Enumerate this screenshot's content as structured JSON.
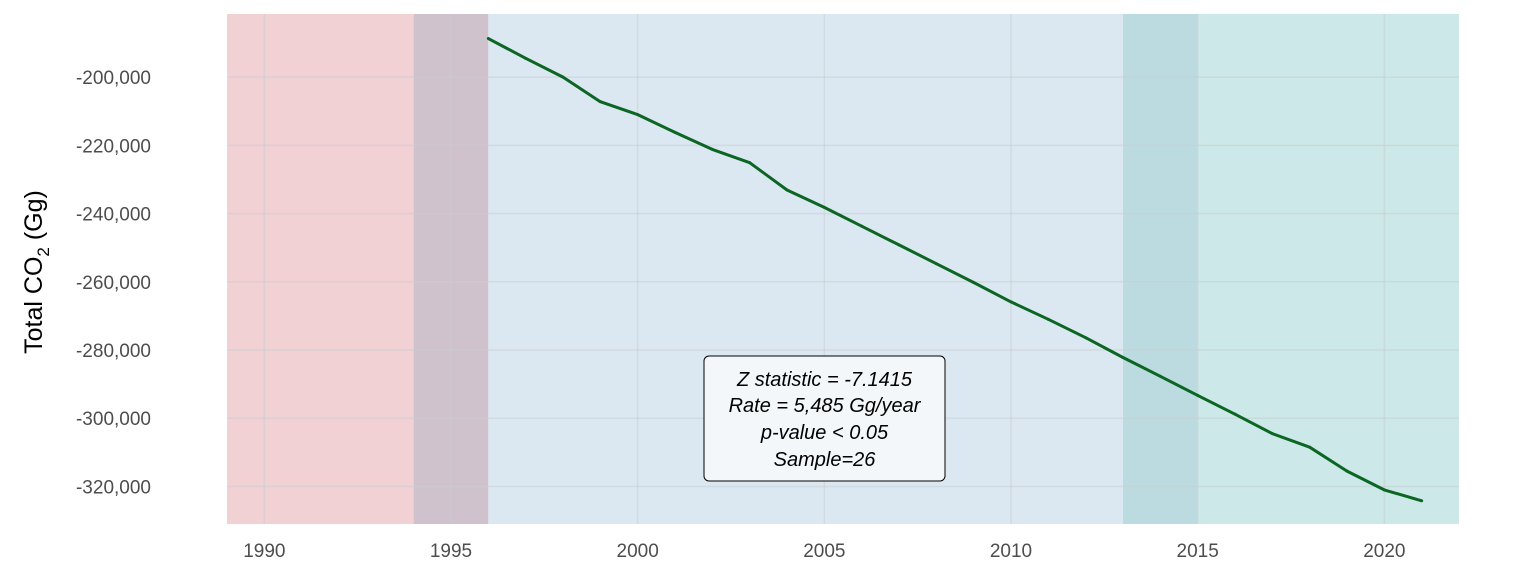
{
  "chart_data": {
    "type": "line",
    "title": "",
    "xlabel": "",
    "ylabel": {
      "main": "Total CO",
      "sub": "2",
      "unit": " (Gg)"
    },
    "xlim": [
      1989,
      2022
    ],
    "ylim": [
      -331000,
      -181500
    ],
    "x_ticks": [
      1990,
      1995,
      2000,
      2005,
      2010,
      2015,
      2020
    ],
    "y_ticks": [
      -200000,
      -220000,
      -240000,
      -260000,
      -280000,
      -300000,
      -320000
    ],
    "y_tick_labels": [
      "-200,000",
      "-220,000",
      "-240,000",
      "-260,000",
      "-280,000",
      "-300,000",
      "-320,000"
    ],
    "grid": true,
    "legend": "none",
    "line_color": "#0b6623",
    "bands": [
      {
        "from": 1989,
        "to": 1994,
        "color": "#e8b3b8"
      },
      {
        "from": 1994,
        "to": 1996,
        "color": "#b09aab"
      },
      {
        "from": 1996,
        "to": 2013,
        "color": "#c4d8e8"
      },
      {
        "from": 2013,
        "to": 2015,
        "color": "#8fc3cb"
      },
      {
        "from": 2015,
        "to": 2022,
        "color": "#acd9d9"
      }
    ],
    "series": [
      {
        "x": [
          1996,
          1997,
          1998,
          1999,
          2000,
          2001,
          2002,
          2003,
          2004,
          2005,
          2006,
          2007,
          2008,
          2009,
          2010,
          2011,
          2012,
          2013,
          2014,
          2015,
          2016,
          2017,
          2018,
          2019,
          2020,
          2021
        ],
        "values": [
          -188700,
          -194500,
          -200000,
          -207200,
          -211000,
          -216200,
          -221200,
          -225100,
          -233100,
          -238200,
          -243700,
          -249200,
          -254700,
          -260200,
          -265900,
          -271000,
          -276400,
          -282200,
          -287700,
          -293300,
          -298800,
          -304500,
          -308500,
          -315500,
          -321000,
          -324200
        ]
      }
    ],
    "annotation": {
      "lines": [
        "Z statistic = -7.1415",
        "Rate = 5,485 Gg/year",
        "p-value < 0.05",
        "Sample=26"
      ]
    }
  }
}
